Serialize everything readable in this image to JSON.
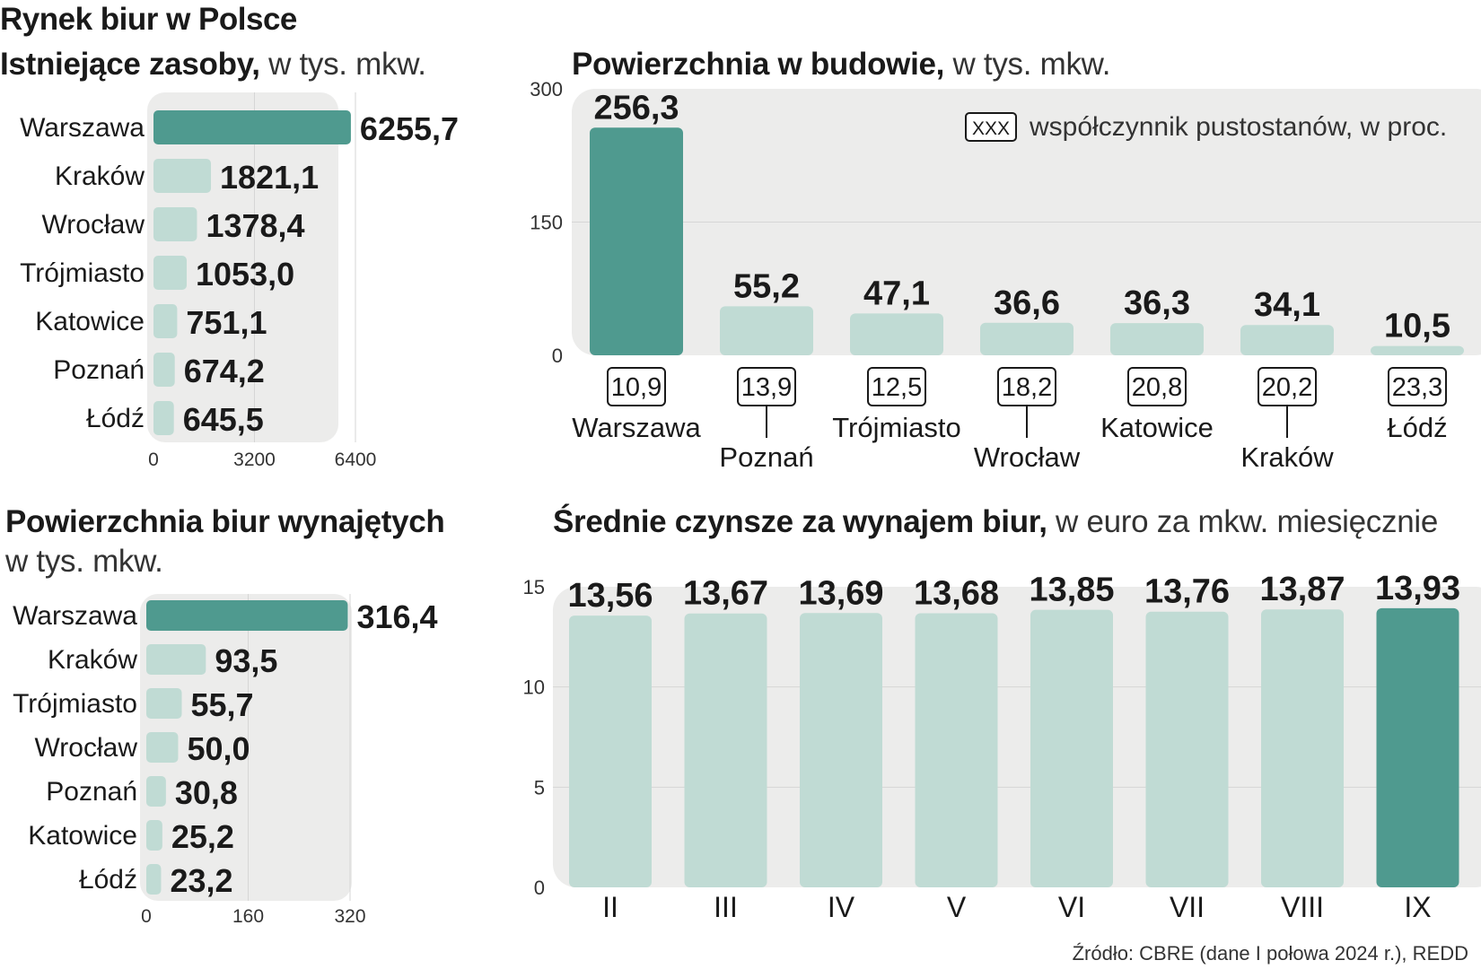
{
  "page": {
    "main_title": "Rynek biur w Polsce",
    "source": "Źródło: CBRE (dane I połowa 2024 r.), REDD"
  },
  "colors": {
    "accent": "#4f9a8f",
    "light": "#c0dbd4",
    "panel": "#ececeb",
    "grid": "#d6d6d6"
  },
  "chart_data": [
    {
      "id": "stock",
      "type": "bar",
      "orientation": "horizontal",
      "title_bold": "Istniejące zasoby,",
      "title_rest": " w tys. mkw.",
      "categories": [
        "Warszawa",
        "Kraków",
        "Wrocław",
        "Trójmiasto",
        "Katowice",
        "Poznań",
        "Łódź"
      ],
      "values": [
        6255.7,
        1821.1,
        1378.4,
        1053.0,
        751.1,
        674.2,
        645.5
      ],
      "labels": [
        "6255,7",
        "1821,1",
        "1378,4",
        "1053,0",
        "751,1",
        "674,2",
        "645,5"
      ],
      "xlim": [
        0,
        6400
      ],
      "ticks": [
        "0",
        "3200",
        "6400"
      ],
      "tick_values": [
        0,
        3200,
        6400
      ],
      "highlight_index": 0
    },
    {
      "id": "construction",
      "type": "bar",
      "orientation": "vertical",
      "title_bold": "Powierzchnia w budowie,",
      "title_rest": " w tys. mkw.",
      "categories": [
        "Warszawa",
        "Poznań",
        "Trójmiasto",
        "Wrocław",
        "Katowice",
        "Kraków",
        "Łódź"
      ],
      "values": [
        256.3,
        55.2,
        47.1,
        36.6,
        36.3,
        34.1,
        10.5
      ],
      "labels": [
        "256,3",
        "55,2",
        "47,1",
        "36,6",
        "36,3",
        "34,1",
        "10,5"
      ],
      "vacancy_rates": [
        "10,9",
        "13,9",
        "12,5",
        "18,2",
        "20,8",
        "20,2",
        "23,3"
      ],
      "legend_box": "XXX",
      "legend_text": "współczynnik pustostanów, w proc.",
      "ylim": [
        0,
        300
      ],
      "ticks": [
        "0",
        "150",
        "300"
      ],
      "tick_values": [
        0,
        150,
        300
      ],
      "highlight_index": 0
    },
    {
      "id": "leased",
      "type": "bar",
      "orientation": "horizontal",
      "title_bold": "Powierzchnia biur wynajętych",
      "title_rest": "w tys. mkw.",
      "categories": [
        "Warszawa",
        "Kraków",
        "Trójmiasto",
        "Wrocław",
        "Poznań",
        "Katowice",
        "Łódź"
      ],
      "values": [
        316.4,
        93.5,
        55.7,
        50.0,
        30.8,
        25.2,
        23.2
      ],
      "labels": [
        "316,4",
        "93,5",
        "55,7",
        "50,0",
        "30,8",
        "25,2",
        "23,2"
      ],
      "xlim": [
        0,
        320
      ],
      "ticks": [
        "0",
        "160",
        "320"
      ],
      "tick_values": [
        0,
        160,
        320
      ],
      "highlight_index": 0
    },
    {
      "id": "rents",
      "type": "bar",
      "orientation": "vertical",
      "title_bold": "Średnie czynsze za wynajem biur,",
      "title_rest": " w euro za mkw. miesięcznie",
      "categories": [
        "II",
        "III",
        "IV",
        "V",
        "VI",
        "VII",
        "VIII",
        "IX"
      ],
      "values": [
        13.56,
        13.67,
        13.69,
        13.68,
        13.85,
        13.76,
        13.87,
        13.93
      ],
      "labels": [
        "13,56",
        "13,67",
        "13,69",
        "13,68",
        "13,85",
        "13,76",
        "13,87",
        "13,93"
      ],
      "ylim": [
        0,
        15
      ],
      "ticks": [
        "0",
        "5",
        "10",
        "15"
      ],
      "tick_values": [
        0,
        5,
        10,
        15
      ],
      "highlight_index": 7
    }
  ]
}
